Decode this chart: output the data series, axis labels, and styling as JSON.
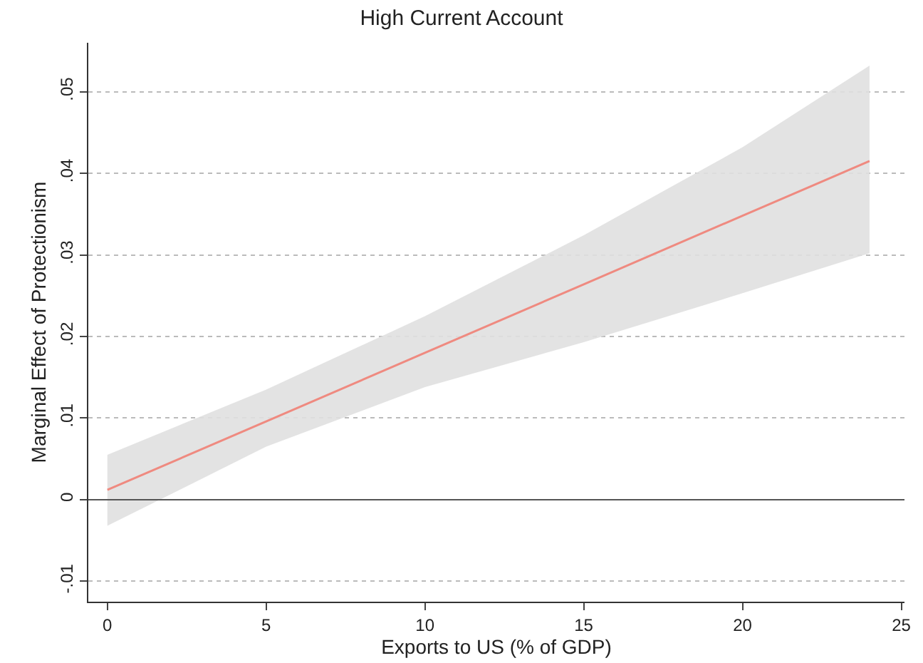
{
  "chart_data": {
    "type": "line",
    "title": "High Current Account",
    "xlabel": "Exports to US (% of GDP)",
    "ylabel": "Marginal Effect of Protectionism",
    "x": [
      0,
      5,
      10,
      15,
      20,
      24
    ],
    "series": [
      {
        "color": "#ef8a80",
        "values": [
          0.0012,
          0.0096,
          0.018,
          0.0264,
          0.0348,
          0.0415
        ],
        "lower": [
          -0.0032,
          0.0065,
          0.0138,
          0.0193,
          0.0253,
          0.0302
        ],
        "upper": [
          0.0055,
          0.0135,
          0.0225,
          0.0324,
          0.0432,
          0.0532
        ]
      }
    ],
    "xlim": [
      -0.6,
      25.1
    ],
    "xticks": [
      0,
      5,
      10,
      15,
      20,
      25
    ],
    "ylim": [
      -0.0125,
      0.056
    ],
    "yticks": [
      {
        "value": -0.01,
        "label": "-.01"
      },
      0,
      {
        "value": 0.01,
        "label": ".01"
      },
      {
        "value": 0.02,
        "label": ".02"
      },
      {
        "value": 0.03,
        "label": ".03"
      },
      {
        "value": 0.04,
        "label": ".04"
      },
      {
        "value": 0.05,
        "label": ".05"
      }
    ],
    "ref_lines": [
      {
        "axis": "y",
        "value": 0,
        "label": null,
        "color": "#555555"
      }
    ],
    "grid": "y",
    "marker": "none",
    "line_style": "solid"
  }
}
